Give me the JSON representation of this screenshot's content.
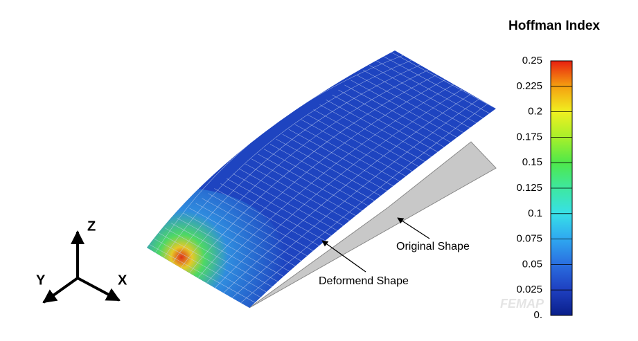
{
  "colorbar": {
    "title": "Hoffman Index",
    "range": [
      0,
      0.25
    ],
    "ticks": [
      0.25,
      0.225,
      0.2,
      0.175,
      0.15,
      0.125,
      0.1,
      0.075,
      0.05,
      0.025,
      {
        "value": 0,
        "label": "0."
      }
    ]
  },
  "annotations": {
    "original": "Original Shape",
    "deformed": "Deformend Shape"
  },
  "triad": {
    "z": "Z",
    "y": "Y",
    "x": "X"
  },
  "watermark": "FEMAP"
}
